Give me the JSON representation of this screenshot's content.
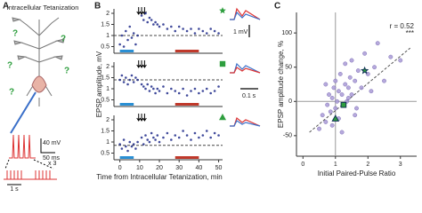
{
  "panel_a": {
    "label": "A",
    "title": "Intracellular Tetanization",
    "questions": [
      "?",
      "?",
      "?",
      "?",
      "?"
    ],
    "scale_v": "40 mV",
    "scale_t": "50 ms",
    "repeat": "x 3",
    "scale_train": "1 s"
  },
  "panel_b": {
    "label": "B",
    "scale_v": "1 mV",
    "scale_t": "0.1 s"
  },
  "panel_c": {
    "label": "C"
  },
  "chart_data": [
    {
      "type": "scatter",
      "color": "#1f2a8a",
      "marker": "star",
      "marker_color": "#2e9e3e",
      "xlim": [
        -3,
        52
      ],
      "ylim": [
        0.2,
        2.2
      ],
      "yticks": [
        0.5,
        1,
        1.5,
        2
      ],
      "hline": 1.0,
      "arrows_x": [
        9.5,
        11,
        12.5
      ],
      "periods": [
        {
          "color": "#2a8fd4",
          "start": 0,
          "end": 7
        },
        {
          "color": "#c0392b",
          "start": 28,
          "end": 40
        }
      ],
      "x": [
        0,
        1,
        2,
        3,
        4,
        5,
        6,
        7,
        8,
        9,
        11,
        12,
        13,
        14,
        15,
        16,
        17,
        18,
        19,
        20,
        22,
        24,
        26,
        28,
        30,
        32,
        34,
        36,
        38,
        40,
        42,
        44,
        46,
        48,
        50
      ],
      "values": [
        0.6,
        1.0,
        0.5,
        1.2,
        0.8,
        1.4,
        0.9,
        1.1,
        0.6,
        1.0,
        1.9,
        1.7,
        2.0,
        1.6,
        1.8,
        1.7,
        1.5,
        1.6,
        1.5,
        1.4,
        1.5,
        1.3,
        1.4,
        1.2,
        1.4,
        1.3,
        1.2,
        1.3,
        1.1,
        1.3,
        1.2,
        1.1,
        1.3,
        1.2,
        1.1
      ]
    },
    {
      "type": "scatter",
      "color": "#1f2a8a",
      "marker": "square",
      "marker_color": "#2e9e3e",
      "ylabel": "EPSP amplitude, mV",
      "xlim": [
        -3,
        52
      ],
      "ylim": [
        0.2,
        2.2
      ],
      "yticks": [
        0.5,
        1,
        1.5,
        2
      ],
      "hline": 1.4,
      "arrows_x": [
        9.5,
        11,
        12.5
      ],
      "periods": [
        {
          "color": "#2a8fd4",
          "start": 0,
          "end": 7
        },
        {
          "color": "#c0392b",
          "start": 28,
          "end": 40
        }
      ],
      "x": [
        0,
        1,
        2,
        3,
        4,
        5,
        6,
        7,
        8,
        9,
        11,
        12,
        13,
        14,
        15,
        16,
        17,
        18,
        19,
        20,
        22,
        24,
        26,
        28,
        30,
        32,
        34,
        36,
        38,
        40,
        42,
        44,
        46,
        48,
        50
      ],
      "values": [
        1.4,
        1.6,
        1.3,
        1.5,
        1.2,
        1.4,
        1.6,
        1.3,
        1.5,
        1.4,
        1.2,
        1.1,
        1.0,
        1.2,
        0.9,
        1.1,
        1.0,
        0.8,
        1.0,
        0.9,
        1.1,
        0.8,
        1.0,
        0.9,
        0.8,
        1.0,
        0.7,
        0.9,
        1.0,
        0.8,
        0.9,
        1.0,
        0.8,
        0.9,
        1.1
      ]
    },
    {
      "type": "scatter",
      "color": "#1f2a8a",
      "marker": "triangle",
      "marker_color": "#2e9e3e",
      "xlabel": "Time from Intracellular Tetanization, min",
      "xlim": [
        -3,
        52
      ],
      "xticks": [
        0,
        10,
        20,
        30,
        40,
        50
      ],
      "ylim": [
        0.2,
        2.2
      ],
      "yticks": [
        0.5,
        1,
        1.5,
        2
      ],
      "hline": 0.85,
      "arrows_x": [
        9.5,
        11,
        12.5
      ],
      "periods": [
        {
          "color": "#2a8fd4",
          "start": 0,
          "end": 7
        },
        {
          "color": "#c0392b",
          "start": 28,
          "end": 40
        }
      ],
      "x": [
        0,
        1,
        2,
        3,
        4,
        5,
        6,
        7,
        8,
        9,
        11,
        12,
        13,
        14,
        15,
        16,
        17,
        18,
        19,
        20,
        22,
        24,
        26,
        28,
        30,
        32,
        34,
        36,
        38,
        40,
        42,
        44,
        46,
        48,
        50
      ],
      "values": [
        0.9,
        0.7,
        1.1,
        0.8,
        0.6,
        1.0,
        0.8,
        0.9,
        0.7,
        1.0,
        1.2,
        0.9,
        1.3,
        1.1,
        1.0,
        1.4,
        1.2,
        1.1,
        1.3,
        1.0,
        1.2,
        1.4,
        1.1,
        1.3,
        1.2,
        1.5,
        1.3,
        1.1,
        1.4,
        1.2,
        1.3,
        1.5,
        1.2,
        1.4,
        1.3
      ]
    },
    {
      "type": "scatter",
      "color": "#a99ad6",
      "xlabel": "Initial Paired-Pulse Ratio",
      "ylabel": "EPSP amplitude change, %",
      "xlim": [
        -0.2,
        3.5
      ],
      "xticks": [
        0,
        1,
        2,
        3
      ],
      "ylim": [
        -80,
        130
      ],
      "yticks": [
        -50,
        0,
        50,
        100
      ],
      "vline": 1,
      "hline": 0,
      "trend_x": [
        0.2,
        3.3
      ],
      "trend_y": [
        -45,
        78
      ],
      "annotations": [
        "r = 0.52",
        "***"
      ],
      "x": [
        0.5,
        0.6,
        0.7,
        0.75,
        0.8,
        0.85,
        0.9,
        0.95,
        1.0,
        1.0,
        1.05,
        1.1,
        1.1,
        1.15,
        1.2,
        1.25,
        1.3,
        1.3,
        1.35,
        1.4,
        1.45,
        1.5,
        1.5,
        1.6,
        1.65,
        1.7,
        1.8,
        1.9,
        2.0,
        2.1,
        2.2,
        2.3,
        2.5,
        2.7,
        3.0,
        0.9,
        1.2,
        1.4,
        0.7,
        1.6
      ],
      "values": [
        -40,
        -20,
        -30,
        -5,
        10,
        -15,
        5,
        20,
        -10,
        30,
        0,
        -25,
        15,
        40,
        10,
        -5,
        25,
        55,
        0,
        20,
        35,
        10,
        60,
        30,
        -10,
        45,
        20,
        70,
        40,
        15,
        50,
        85,
        30,
        65,
        60,
        -35,
        -45,
        5,
        25,
        -20
      ],
      "highlights": [
        {
          "marker": "star",
          "color": "#2e9e3e",
          "x": 1.9,
          "y": 45
        },
        {
          "marker": "square",
          "color": "#2e9e3e",
          "x": 1.25,
          "y": -5
        },
        {
          "marker": "triangle",
          "color": "#2e9e3e",
          "x": 1.0,
          "y": -25
        }
      ]
    }
  ]
}
